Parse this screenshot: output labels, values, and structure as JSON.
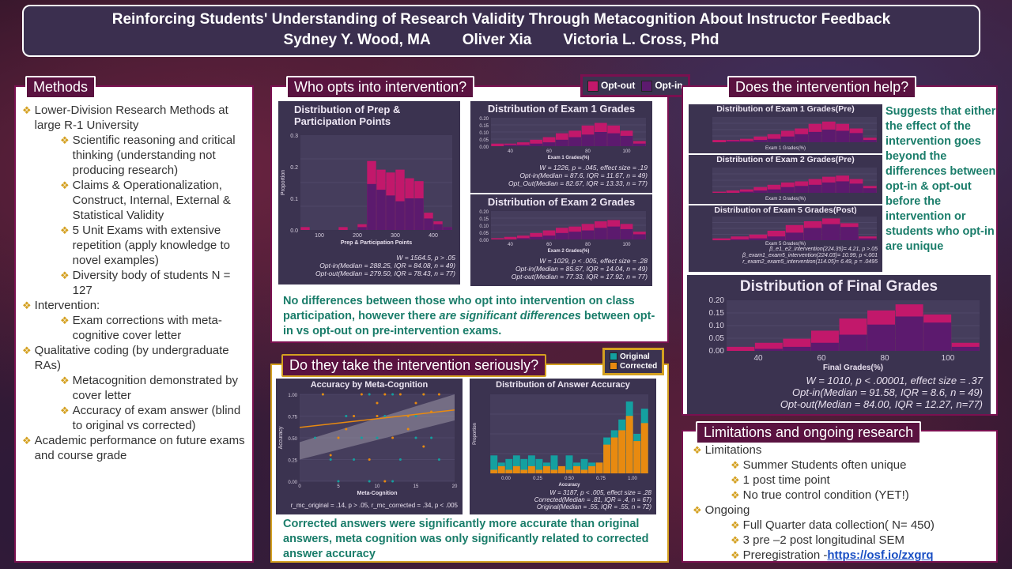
{
  "header": {
    "title": "Reinforcing Students' Understanding of Research Validity Through Metacognition About Instructor Feedback",
    "authors": [
      "Sydney Y. Wood, MA",
      "Oliver Xia",
      "Victoria L. Cross, Phd"
    ]
  },
  "methods": {
    "label": "Methods",
    "items": [
      {
        "level": 1,
        "text": "Lower-Division Research Methods at large R-1 University"
      },
      {
        "level": 2,
        "text": "Scientific reasoning and critical thinking (understanding not producing research)"
      },
      {
        "level": 2,
        "text": "Claims & Operationalization, Construct, Internal, External & Statistical Validity"
      },
      {
        "level": 2,
        "text": "5 Unit Exams with extensive repetition (apply knowledge to novel examples)"
      },
      {
        "level": 2,
        "text": "Diversity body of students N = 127"
      },
      {
        "level": 1,
        "text": "Intervention:"
      },
      {
        "level": 2,
        "text": "Exam corrections with meta-cognitive cover letter"
      },
      {
        "level": 1,
        "text": " Qualitative coding (by undergraduate RAs)"
      },
      {
        "level": 2,
        "text": "Metacognition demonstrated by cover letter"
      },
      {
        "level": 2,
        "text": "Accuracy of exam answer (blind to original vs corrected)"
      },
      {
        "level": 1,
        "text": "Academic performance on future exams and course grade"
      }
    ]
  },
  "who": {
    "label": "Who opts into intervention?",
    "legend": {
      "optout": "Opt-out",
      "optin": "Opt-in"
    },
    "conclusion_a": "No differences between those who opt into intervention on class participation, however there ",
    "conclusion_em": "are significant differences",
    "conclusion_b": " between opt-in vs opt-out on pre-intervention exams.",
    "prep": {
      "title": "Distribution of Prep & Participation Points",
      "xlabel": "Prep & Participation Points",
      "ylabel": "Proportion",
      "yticks": [
        "0.3",
        "0.2",
        "0.1",
        "0.0"
      ],
      "xticks": [
        "100",
        "200",
        "300",
        "400"
      ],
      "stats": [
        "W = 1564.5, p > .05",
        "Opt-in(Median = 288.25, IQR = 84.08, n = 49)",
        "Opt-out(Median = 279.50, IQR = 78.43, n = 77)"
      ]
    },
    "exam1": {
      "title": "Distribution of Exam 1 Grades",
      "xlabel": "Exam 1 Grades(%)",
      "yticks": [
        "0.20",
        "0.15",
        "0.10",
        "0.05",
        "0.00"
      ],
      "xticks": [
        "40",
        "60",
        "80",
        "100"
      ],
      "stats": [
        "W = 1226, p = .045, effect size = .19",
        "Opt-in(Median = 87.6, IQR = 11.67, n = 49)",
        "Opt_Out(Median = 82.67, IQR = 13.33, n = 77)"
      ]
    },
    "exam2": {
      "title": "Distribution of Exam 2 Grades",
      "xlabel": "Exam 2 Grades(%)",
      "yticks": [
        "0.20",
        "0.15",
        "0.10",
        "0.05",
        "0.00"
      ],
      "xticks": [
        "40",
        "60",
        "80",
        "100"
      ],
      "stats": [
        "W = 1029, p < .005, effect size = .28",
        "Opt-in(Median = 85.67, IQR = 14.04, n = 49)",
        "Opt-out(Median = 77.33, IQR = 17.92, n = 77)"
      ]
    }
  },
  "serious": {
    "label": "Do they take the intervention seriously?",
    "legend": {
      "original": "Original",
      "corrected": "Corrected"
    },
    "conclusion": "Corrected answers were significantly more accurate than original answers, meta cognition was only significantly related to corrected answer accuracy",
    "meta": {
      "title": "Accuracy by Meta-Cognition",
      "xlabel": "Meta-Cognition",
      "ylabel": "Accuracy",
      "yticks": [
        "1.00",
        "0.75",
        "0.50",
        "0.25",
        "0.00"
      ],
      "xticks": [
        "0",
        "5",
        "10",
        "15",
        "20"
      ],
      "stats": "r_mc_original = .14, p > .05,     r_mc_corrected = .34, p < .005"
    },
    "acc": {
      "title": "Distribution of Answer Accuracy",
      "xlabel": "Accuracy",
      "ylabel": "Proportion",
      "xticks": [
        "0.00",
        "0.25",
        "0.50",
        "0.75",
        "1.00"
      ],
      "stats": [
        "W = 3187, p < .005, effect size = .28",
        "Corrected(Median = .81, IQR = .4, n = 67)",
        "Original(Median = .55, IQR = .55, n = 72)"
      ]
    }
  },
  "help": {
    "label": "Does the intervention help?",
    "conclusion": "Suggests that either the effect of the intervention goes beyond the differences between opt-in & opt-out before the intervention or students who opt-in are unique",
    "pre1": {
      "title": "Distribution of Exam 1 Grades(Pre)",
      "xlabel": "Exam 1 Grades(%)"
    },
    "pre2": {
      "title": "Distribution of Exam 2 Grades(Pre)",
      "xlabel": "Exam 2 Grades(%)"
    },
    "post5": {
      "title": "Distribution of Exam 5 Grades(Post)",
      "xlabel": "Exam 5 Grades(%)"
    },
    "post5_stats": [
      "β_e1_e2_intervention(224.35)= 4.21, p >.05",
      "β_exam1_exam5_intervention(224.03)= 10.99, p <.001",
      "r_exam2_exam5_intervention(114.05)= 6.49, p = .0495"
    ],
    "final": {
      "title": "Distribution of Final Grades",
      "xlabel": "Final Grades(%)",
      "yticks": [
        "0.20",
        "0.15",
        "0.10",
        "0.05",
        "0.00"
      ],
      "xticks": [
        "40",
        "60",
        "80",
        "100"
      ],
      "stats": [
        "W = 1010, p < .00001, effect size = .37",
        "Opt-in(Median = 91.58, IQR = 8.6, n = 49)",
        "Opt-out(Median = 84.00, IQR = 12.27, n=77)"
      ]
    }
  },
  "limits": {
    "label": "Limitations and ongoing research",
    "limitations": "Limitations",
    "limit_items": [
      "Summer Students often unique",
      "1 post time point",
      "No true control condition (YET!)"
    ],
    "ongoing": "Ongoing",
    "ongoing_items": [
      "Full Quarter data collection( N= 450)",
      " 3 pre –2 post longitudinal SEM"
    ],
    "prereg_label": "Preregistration - ",
    "prereg_link": "https://osf.io/zxgrq"
  },
  "colors": {
    "optout": "#c2186b",
    "optin": "#5c1a6e",
    "original": "#14a0a0",
    "corrected": "#e88a10",
    "panel_border": "#7a1050",
    "text_green": "#1a7d6a"
  },
  "chart_data": [
    {
      "type": "bar",
      "title": "Distribution of Prep & Participation Points",
      "xlabel": "Prep & Participation Points",
      "ylabel": "Proportion",
      "categories": [
        "110",
        "130",
        "150",
        "170",
        "190",
        "210",
        "230",
        "250",
        "270",
        "290",
        "310",
        "330",
        "350",
        "370",
        "390",
        "410"
      ],
      "series": [
        {
          "name": "Opt-out",
          "values": [
            0.01,
            0,
            0,
            0,
            0.01,
            0,
            0.02,
            0.24,
            0.21,
            0.2,
            0.21,
            0.18,
            0.17,
            0.06,
            0.03,
            0.01
          ]
        },
        {
          "name": "Opt-in",
          "values": [
            0,
            0,
            0,
            0,
            0,
            0,
            0.01,
            0.16,
            0.14,
            0.12,
            0.1,
            0.11,
            0.11,
            0.04,
            0.02,
            0.01
          ]
        }
      ],
      "ylim": [
        0,
        0.33
      ]
    },
    {
      "type": "bar",
      "title": "Distribution of Exam 1 Grades",
      "xlabel": "Exam 1 Grades(%)",
      "categories": [
        "45",
        "50",
        "55",
        "60",
        "65",
        "70",
        "75",
        "80",
        "85",
        "90",
        "95",
        "100"
      ],
      "series": [
        {
          "name": "Opt-out",
          "values": [
            0.02,
            0.02,
            0.03,
            0.05,
            0.07,
            0.1,
            0.12,
            0.16,
            0.18,
            0.16,
            0.12,
            0.04
          ]
        },
        {
          "name": "Opt-in",
          "values": [
            0,
            0.01,
            0.01,
            0.02,
            0.03,
            0.05,
            0.07,
            0.09,
            0.11,
            0.1,
            0.08,
            0.02
          ]
        }
      ],
      "ylim": [
        0,
        0.22
      ]
    },
    {
      "type": "bar",
      "title": "Distribution of Exam 2 Grades",
      "xlabel": "Exam 2 Grades(%)",
      "categories": [
        "45",
        "50",
        "55",
        "60",
        "65",
        "70",
        "75",
        "80",
        "85",
        "90",
        "95",
        "100"
      ],
      "series": [
        {
          "name": "Opt-out",
          "values": [
            0.01,
            0.02,
            0.03,
            0.05,
            0.07,
            0.09,
            0.1,
            0.12,
            0.14,
            0.15,
            0.12,
            0.06
          ]
        },
        {
          "name": "Opt-in",
          "values": [
            0,
            0,
            0.01,
            0.02,
            0.03,
            0.05,
            0.06,
            0.07,
            0.09,
            0.1,
            0.08,
            0.04
          ]
        }
      ],
      "ylim": [
        0,
        0.22
      ]
    },
    {
      "type": "bar",
      "title": "Distribution of Answer Accuracy",
      "xlabel": "Accuracy",
      "ylabel": "Proportion",
      "categories": [
        "0.00",
        "0.05",
        "0.10",
        "0.15",
        "0.20",
        "0.25",
        "0.30",
        "0.35",
        "0.40",
        "0.45",
        "0.50",
        "0.55",
        "0.60",
        "0.65",
        "0.70",
        "0.75",
        "0.80",
        "0.85",
        "0.90",
        "0.95",
        "1.00"
      ],
      "series": [
        {
          "name": "Original",
          "values": [
            0.05,
            0.03,
            0.04,
            0.05,
            0.04,
            0.05,
            0.04,
            0.03,
            0.05,
            0.02,
            0.05,
            0.03,
            0.04,
            0.03,
            0.03,
            0.1,
            0.12,
            0.15,
            0.2,
            0.11,
            0.18
          ]
        },
        {
          "name": "Corrected",
          "values": [
            0.01,
            0.02,
            0.01,
            0.02,
            0.01,
            0.02,
            0.01,
            0.02,
            0.01,
            0.02,
            0.01,
            0.02,
            0.01,
            0.02,
            0.03,
            0.08,
            0.1,
            0.12,
            0.16,
            0.09,
            0.14
          ]
        }
      ]
    },
    {
      "type": "scatter",
      "title": "Accuracy by Meta-Cognition",
      "xlabel": "Meta-Cognition",
      "ylabel": "Accuracy",
      "xlim": [
        0,
        20
      ],
      "ylim": [
        0,
        1
      ],
      "series": [
        {
          "name": "Original",
          "x": [
            2,
            4,
            6,
            7,
            8,
            9,
            10,
            11,
            12,
            13,
            14,
            15,
            16,
            17,
            18,
            3,
            5,
            9,
            12,
            15
          ],
          "y": [
            0.5,
            0.25,
            0.75,
            0.25,
            0.5,
            1.0,
            0.5,
            0.75,
            1.0,
            0.25,
            0.75,
            0.5,
            1.0,
            0.5,
            0.25,
            1.0,
            0.0,
            0.0,
            0.0,
            0.75
          ]
        },
        {
          "name": "Corrected",
          "x": [
            3,
            5,
            7,
            8,
            9,
            10,
            11,
            12,
            13,
            14,
            15,
            16,
            17,
            18,
            4,
            6,
            11,
            14,
            10,
            16
          ],
          "y": [
            1.0,
            0.5,
            0.75,
            1.0,
            0.25,
            0.75,
            1.0,
            0.5,
            1.0,
            0.75,
            0.9,
            1.0,
            0.8,
            1.0,
            0.3,
            0.6,
            0.0,
            0.6,
            0.9,
            0.4
          ]
        }
      ]
    },
    {
      "type": "bar",
      "title": "Distribution of Final Grades",
      "xlabel": "Final Grades(%)",
      "categories": [
        "60",
        "65",
        "70",
        "75",
        "80",
        "85",
        "90",
        "95",
        "100"
      ],
      "series": [
        {
          "name": "Opt-out",
          "values": [
            0.02,
            0.04,
            0.06,
            0.1,
            0.16,
            0.2,
            0.23,
            0.18,
            0.04
          ]
        },
        {
          "name": "Opt-in",
          "values": [
            0,
            0.01,
            0.02,
            0.04,
            0.08,
            0.13,
            0.17,
            0.14,
            0.02
          ]
        }
      ],
      "ylim": [
        0,
        0.25
      ]
    }
  ]
}
